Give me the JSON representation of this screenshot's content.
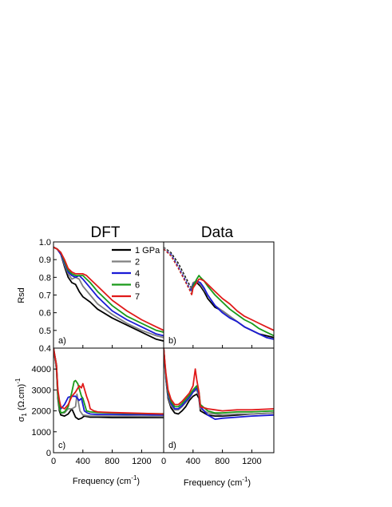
{
  "figure": {
    "col_titles": [
      "DFT",
      "Data"
    ],
    "ylabel_top": "Rsd",
    "ylabel_bottom_main": "σ",
    "ylabel_bottom_sub": "1",
    "ylabel_bottom_unit": "(Ω.cm)",
    "ylabel_bottom_sup": "-1",
    "xlabel_main": "Frequency (cm",
    "xlabel_sup": "-1",
    "xlabel_close": ")",
    "colors": {
      "1": "#000000",
      "2": "#808080",
      "4": "#1a1ad6",
      "6": "#1a9a1a",
      "7": "#e01a1a"
    }
  },
  "chart_data": [
    {
      "type": "line",
      "panel": "a)",
      "xlim": [
        0,
        1500
      ],
      "ylim": [
        0.4,
        1.0
      ],
      "xticks": [],
      "yticks": [
        "0.4",
        "0.5",
        "0.6",
        "0.7",
        "0.8",
        "0.9",
        "1.0"
      ],
      "legend": {
        "placement": "top-right",
        "entries": [
          "1 GPa",
          "2",
          "4",
          "6",
          "7"
        ]
      },
      "series": [
        {
          "name": "1 GPa",
          "color": "#000000",
          "x": [
            0,
            50,
            100,
            150,
            200,
            250,
            300,
            350,
            400,
            500,
            600,
            800,
            1000,
            1200,
            1400,
            1500
          ],
          "y": [
            0.97,
            0.96,
            0.93,
            0.86,
            0.8,
            0.77,
            0.76,
            0.72,
            0.69,
            0.66,
            0.62,
            0.57,
            0.53,
            0.49,
            0.45,
            0.44
          ]
        },
        {
          "name": "2",
          "color": "#808080",
          "x": [
            0,
            50,
            100,
            150,
            200,
            250,
            300,
            350,
            400,
            500,
            600,
            800,
            1000,
            1200,
            1400,
            1500
          ],
          "y": [
            0.97,
            0.96,
            0.93,
            0.87,
            0.82,
            0.79,
            0.8,
            0.79,
            0.75,
            0.7,
            0.65,
            0.59,
            0.54,
            0.5,
            0.47,
            0.46
          ]
        },
        {
          "name": "4",
          "color": "#1a1ad6",
          "x": [
            0,
            50,
            100,
            150,
            200,
            250,
            300,
            350,
            400,
            500,
            600,
            800,
            1000,
            1200,
            1400,
            1500
          ],
          "y": [
            0.97,
            0.96,
            0.93,
            0.88,
            0.83,
            0.81,
            0.8,
            0.81,
            0.79,
            0.74,
            0.69,
            0.61,
            0.56,
            0.52,
            0.48,
            0.47
          ]
        },
        {
          "name": "6",
          "color": "#1a9a1a",
          "x": [
            0,
            50,
            100,
            150,
            200,
            250,
            300,
            350,
            400,
            450,
            500,
            600,
            800,
            1000,
            1200,
            1400,
            1500
          ],
          "y": [
            0.97,
            0.96,
            0.94,
            0.89,
            0.84,
            0.82,
            0.81,
            0.81,
            0.81,
            0.79,
            0.77,
            0.72,
            0.64,
            0.58,
            0.54,
            0.5,
            0.49
          ]
        },
        {
          "name": "7",
          "color": "#e01a1a",
          "x": [
            0,
            50,
            100,
            150,
            200,
            250,
            300,
            350,
            400,
            450,
            500,
            600,
            800,
            1000,
            1200,
            1400,
            1500
          ],
          "y": [
            0.97,
            0.96,
            0.94,
            0.9,
            0.85,
            0.83,
            0.82,
            0.82,
            0.82,
            0.81,
            0.79,
            0.75,
            0.67,
            0.61,
            0.56,
            0.52,
            0.5
          ]
        }
      ]
    },
    {
      "type": "line",
      "panel": "b)",
      "xlim": [
        0,
        1500
      ],
      "ylim": [
        0.4,
        1.0
      ],
      "xticks": [],
      "yticks": [],
      "series": [
        {
          "name": "1 GPa",
          "color": "#000000",
          "dashed_x": [
            0,
            100,
            200,
            300,
            350,
            380
          ],
          "dashed_y": [
            0.97,
            0.94,
            0.88,
            0.8,
            0.76,
            0.74
          ],
          "x": [
            380,
            400,
            450,
            500,
            550,
            600,
            700,
            800,
            900,
            1000,
            1100,
            1200,
            1300,
            1400,
            1500
          ],
          "y": [
            0.73,
            0.76,
            0.77,
            0.75,
            0.72,
            0.68,
            0.63,
            0.61,
            0.58,
            0.55,
            0.52,
            0.5,
            0.48,
            0.47,
            0.46
          ]
        },
        {
          "name": "2",
          "color": "#808080",
          "dashed_x": [
            0,
            100,
            200,
            300,
            350,
            380
          ],
          "dashed_y": [
            0.97,
            0.93,
            0.87,
            0.79,
            0.75,
            0.73
          ],
          "x": [
            380,
            400,
            450,
            500,
            550,
            600,
            700,
            800,
            900,
            1000,
            1100,
            1200,
            1300,
            1400,
            1500
          ],
          "y": [
            0.74,
            0.77,
            0.78,
            0.76,
            0.73,
            0.7,
            0.64,
            0.61,
            0.58,
            0.55,
            0.52,
            0.5,
            0.48,
            0.46,
            0.45
          ]
        },
        {
          "name": "4",
          "color": "#1a1ad6",
          "dashed_x": [
            0,
            100,
            200,
            300,
            350,
            380
          ],
          "dashed_y": [
            0.96,
            0.93,
            0.86,
            0.78,
            0.74,
            0.72
          ],
          "x": [
            380,
            400,
            450,
            500,
            550,
            600,
            700,
            800,
            900,
            1000,
            1100,
            1200,
            1300,
            1400,
            1500
          ],
          "y": [
            0.72,
            0.76,
            0.78,
            0.77,
            0.74,
            0.7,
            0.64,
            0.6,
            0.57,
            0.55,
            0.52,
            0.5,
            0.48,
            0.46,
            0.45
          ]
        },
        {
          "name": "6",
          "color": "#1a9a1a",
          "dashed_x": [
            0,
            100,
            200,
            300,
            350,
            380
          ],
          "dashed_y": [
            0.96,
            0.92,
            0.85,
            0.77,
            0.73,
            0.71
          ],
          "x": [
            380,
            400,
            450,
            480,
            500,
            550,
            600,
            700,
            800,
            900,
            1000,
            1100,
            1200,
            1300,
            1400,
            1500
          ],
          "y": [
            0.7,
            0.75,
            0.79,
            0.81,
            0.8,
            0.78,
            0.75,
            0.7,
            0.66,
            0.62,
            0.59,
            0.56,
            0.54,
            0.51,
            0.49,
            0.47
          ]
        },
        {
          "name": "7",
          "color": "#e01a1a",
          "dashed_x": [
            0,
            100,
            200,
            300,
            350,
            380
          ],
          "dashed_y": [
            0.96,
            0.92,
            0.85,
            0.77,
            0.73,
            0.7
          ],
          "x": [
            380,
            400,
            450,
            480,
            500,
            550,
            600,
            700,
            800,
            900,
            1000,
            1100,
            1200,
            1300,
            1400,
            1500
          ],
          "y": [
            0.7,
            0.74,
            0.77,
            0.79,
            0.79,
            0.78,
            0.76,
            0.72,
            0.68,
            0.65,
            0.61,
            0.58,
            0.56,
            0.54,
            0.52,
            0.5
          ]
        }
      ]
    },
    {
      "type": "line",
      "panel": "c)",
      "xlim": [
        0,
        1500
      ],
      "ylim": [
        0,
        5000
      ],
      "xticks": [
        "0",
        "400",
        "800",
        "1200"
      ],
      "yticks": [
        "0",
        "1000",
        "2000",
        "3000",
        "4000"
      ],
      "series": [
        {
          "name": "1 GPa",
          "color": "#000000",
          "x": [
            0,
            40,
            60,
            80,
            100,
            150,
            200,
            250,
            300,
            340,
            380,
            420,
            500,
            600,
            800,
            1000,
            1200,
            1500
          ],
          "y": [
            5000,
            4000,
            2600,
            2000,
            1800,
            1750,
            1850,
            2100,
            1700,
            1600,
            1650,
            1750,
            1700,
            1700,
            1680,
            1680,
            1680,
            1680
          ]
        },
        {
          "name": "2",
          "color": "#808080",
          "x": [
            0,
            40,
            60,
            80,
            100,
            150,
            200,
            250,
            300,
            320,
            360,
            400,
            500,
            600,
            800,
            1000,
            1200,
            1500
          ],
          "y": [
            5000,
            4000,
            2700,
            2100,
            1900,
            1900,
            2100,
            2100,
            2200,
            2800,
            2000,
            1800,
            1750,
            1750,
            1750,
            1750,
            1740,
            1730
          ]
        },
        {
          "name": "4",
          "color": "#1a1ad6",
          "x": [
            0,
            40,
            60,
            80,
            100,
            150,
            200,
            250,
            300,
            350,
            380,
            420,
            460,
            500,
            600,
            800,
            1000,
            1200,
            1500
          ],
          "y": [
            5000,
            4200,
            2900,
            2300,
            2100,
            2300,
            2650,
            2700,
            2700,
            2500,
            2600,
            2000,
            1900,
            1850,
            1830,
            1830,
            1820,
            1820,
            1800
          ]
        },
        {
          "name": "6",
          "color": "#1a9a1a",
          "x": [
            0,
            40,
            60,
            80,
            100,
            150,
            200,
            250,
            280,
            300,
            330,
            380,
            400,
            450,
            500,
            600,
            800,
            1000,
            1200,
            1500
          ],
          "y": [
            5000,
            4200,
            2800,
            2200,
            1900,
            1950,
            2200,
            2900,
            3400,
            3450,
            3300,
            2700,
            2600,
            2000,
            1950,
            1920,
            1900,
            1880,
            1870,
            1860
          ]
        },
        {
          "name": "7",
          "color": "#e01a1a",
          "x": [
            0,
            40,
            60,
            80,
            100,
            150,
            200,
            250,
            300,
            350,
            380,
            400,
            450,
            480,
            500,
            550,
            600,
            800,
            1000,
            1200,
            1500
          ],
          "y": [
            5000,
            4200,
            3000,
            2500,
            2200,
            2100,
            2300,
            2700,
            2900,
            3200,
            3100,
            3300,
            2700,
            2400,
            2100,
            2000,
            1950,
            1920,
            1900,
            1880,
            1850
          ]
        }
      ]
    },
    {
      "type": "line",
      "panel": "d)",
      "xlim": [
        0,
        1500
      ],
      "ylim": [
        0,
        5000
      ],
      "xticks": [
        "0",
        "400",
        "800",
        "1200"
      ],
      "yticks": [],
      "series": [
        {
          "name": "1 GPa",
          "color": "#000000",
          "x": [
            0,
            30,
            60,
            100,
            150,
            200,
            250,
            300,
            350,
            400,
            450,
            480,
            500,
            600,
            700,
            800,
            1000,
            1200,
            1500
          ],
          "y": [
            5000,
            3500,
            2600,
            2150,
            1900,
            1850,
            2000,
            2200,
            2500,
            2700,
            2800,
            2600,
            2000,
            1800,
            1750,
            1750,
            1800,
            1850,
            1900
          ]
        },
        {
          "name": "2",
          "color": "#808080",
          "x": [
            0,
            30,
            60,
            100,
            150,
            200,
            250,
            300,
            350,
            400,
            450,
            480,
            500,
            600,
            700,
            800,
            1000,
            1200,
            1500
          ],
          "y": [
            5000,
            3500,
            2700,
            2250,
            2050,
            2050,
            2200,
            2400,
            2600,
            2900,
            3000,
            2700,
            2100,
            1900,
            1850,
            1800,
            1850,
            1850,
            1900
          ]
        },
        {
          "name": "4",
          "color": "#1a1ad6",
          "x": [
            0,
            30,
            60,
            100,
            150,
            200,
            250,
            300,
            350,
            400,
            450,
            480,
            500,
            600,
            700,
            800,
            1000,
            1200,
            1500
          ],
          "y": [
            5000,
            3600,
            2800,
            2350,
            2100,
            2100,
            2250,
            2450,
            2650,
            2900,
            3100,
            2800,
            2200,
            1800,
            1600,
            1650,
            1700,
            1750,
            1800
          ]
        },
        {
          "name": "6",
          "color": "#1a9a1a",
          "x": [
            0,
            30,
            60,
            100,
            150,
            200,
            250,
            300,
            350,
            400,
            450,
            480,
            500,
            600,
            700,
            800,
            1000,
            1200,
            1500
          ],
          "y": [
            5000,
            3700,
            2900,
            2450,
            2200,
            2200,
            2350,
            2550,
            2750,
            3000,
            3200,
            2900,
            2300,
            2000,
            1900,
            1900,
            1950,
            1950,
            2000
          ]
        },
        {
          "name": "7",
          "color": "#e01a1a",
          "x": [
            0,
            30,
            60,
            100,
            150,
            200,
            250,
            300,
            350,
            400,
            430,
            450,
            480,
            500,
            550,
            600,
            700,
            800,
            1000,
            1200,
            1500
          ],
          "y": [
            5000,
            3800,
            3000,
            2550,
            2300,
            2300,
            2450,
            2650,
            2850,
            3200,
            4000,
            3500,
            2900,
            2200,
            2150,
            2100,
            2050,
            2000,
            2050,
            2050,
            2100
          ]
        }
      ]
    }
  ]
}
